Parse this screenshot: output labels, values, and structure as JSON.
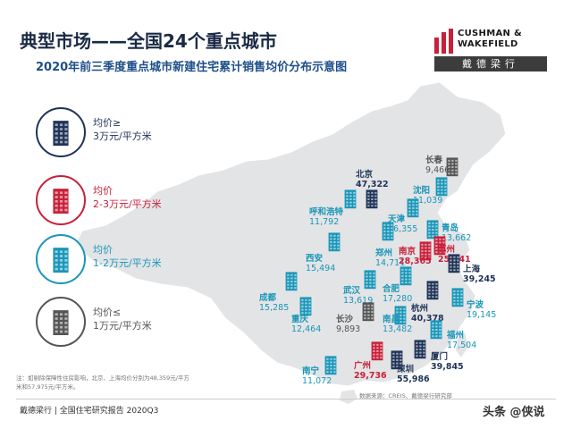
{
  "title": "典型市场——全国24个重点城市",
  "subtitle": "2020年前三季度重点城市新建住宅累计销售均价分布示意图",
  "logo": {
    "name_line1": "CUSHMAN &",
    "name_line2": "WAKEFIELD",
    "cn": "戴德梁行"
  },
  "colors": {
    "high": "#1f3357",
    "mid": "#c8203a",
    "low": "#1996b8",
    "min": "#555555",
    "map_fill": "#e3e4e6"
  },
  "legend": [
    {
      "key": "high",
      "line1": "均价≥",
      "line2": "3万元/平方米",
      "icon": "building-icon"
    },
    {
      "key": "mid",
      "line1": "均价",
      "line2": "2-3万元/平方米",
      "icon": "building-icon"
    },
    {
      "key": "low",
      "line1": "均价",
      "line2": "1-2万元/平方米",
      "icon": "building-icon"
    },
    {
      "key": "min",
      "line1": "均价≤",
      "line2": "1万元/平方米",
      "icon": "building-icon"
    }
  ],
  "cities": [
    {
      "name": "长春",
      "price": "9,466",
      "cat": "min"
    },
    {
      "name": "北京",
      "price": "47,322",
      "cat": "high"
    },
    {
      "name": "沈阳",
      "price": "11,039",
      "cat": "low"
    },
    {
      "name": "呼和浩特",
      "price": "11,792",
      "cat": "low"
    },
    {
      "name": "天津",
      "price": "16,355",
      "cat": "low"
    },
    {
      "name": "青岛",
      "price": "13,662",
      "cat": "low"
    },
    {
      "name": "西安",
      "price": "15,494",
      "cat": "low"
    },
    {
      "name": "郑州",
      "price": "14,711",
      "cat": "low"
    },
    {
      "name": "南京",
      "price": "28,365",
      "cat": "mid"
    },
    {
      "name": "苏州",
      "price": "25,841",
      "cat": "mid"
    },
    {
      "name": "上海",
      "price": "39,245",
      "cat": "high"
    },
    {
      "name": "成都",
      "price": "15,285",
      "cat": "low"
    },
    {
      "name": "武汉",
      "price": "13,619",
      "cat": "low"
    },
    {
      "name": "合肥",
      "price": "17,280",
      "cat": "low"
    },
    {
      "name": "宁波",
      "price": "19,145",
      "cat": "low"
    },
    {
      "name": "杭州",
      "price": "40,378",
      "cat": "high"
    },
    {
      "name": "重庆",
      "price": "12,464",
      "cat": "low"
    },
    {
      "name": "长沙",
      "price": "9,893",
      "cat": "min"
    },
    {
      "name": "南昌",
      "price": "13,482",
      "cat": "low"
    },
    {
      "name": "福州",
      "price": "17,504",
      "cat": "low"
    },
    {
      "name": "厦门",
      "price": "39,845",
      "cat": "high"
    },
    {
      "name": "广州",
      "price": "29,736",
      "cat": "mid"
    },
    {
      "name": "深圳",
      "price": "55,986",
      "cat": "high"
    },
    {
      "name": "南宁",
      "price": "11,072",
      "cat": "low"
    }
  ],
  "note": "注：如剔除保障性住房影响，北京、上海均价分别为48,359元/平方米和57,975元/平方米。",
  "source": "数据来源：CREIS、戴德梁行研究部",
  "footer": "戴德梁行 | 全国住宅研究报告 2020Q3",
  "watermark": "头条 @侠说"
}
